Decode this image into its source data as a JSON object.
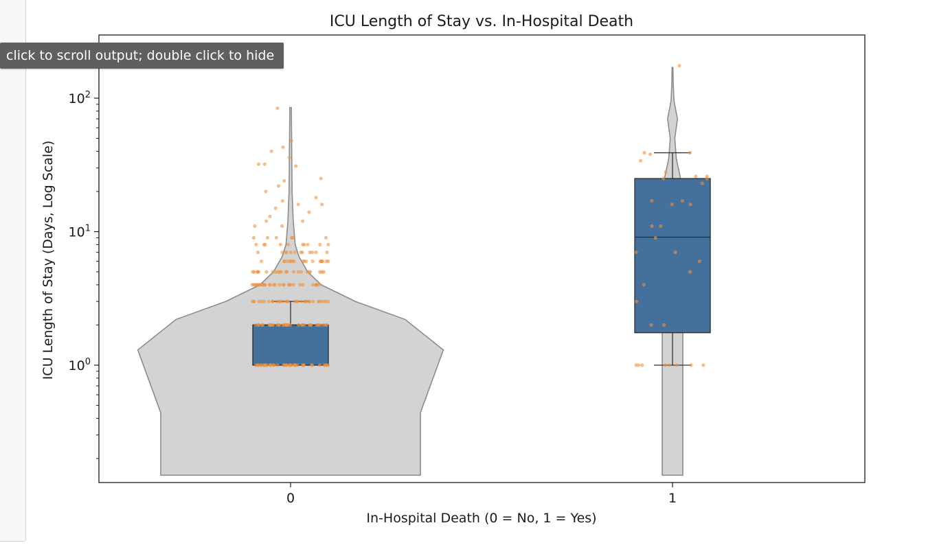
{
  "output_area": {
    "tooltip_text": "click to scroll output; double click to hide"
  },
  "chart_data": {
    "type": "violin+box+strip",
    "title": "ICU Length of Stay vs. In-Hospital Death",
    "xlabel": "In-Hospital Death (0 = No, 1 = Yes)",
    "ylabel": "ICU Length of Stay (Days, Log Scale)",
    "categories": [
      "0",
      "1"
    ],
    "y_scale": "log",
    "ylim": [
      0.15,
      150
    ],
    "y_ticks": [
      {
        "value": 1,
        "base": "10",
        "exp": "0"
      },
      {
        "value": 10,
        "base": "10",
        "exp": "1"
      },
      {
        "value": 100,
        "base": "10",
        "exp": "2"
      }
    ],
    "colors": {
      "violin_fill": "#d3d3d3",
      "violin_edge": "#8c8c8c",
      "box_fill": "#43719c",
      "box_edge": "#2b2b2b",
      "points": "#f0923c"
    },
    "boxes": [
      {
        "category": "0",
        "whislo": 1,
        "q1": 1,
        "median": 2,
        "q3": 2,
        "whishi": 3
      },
      {
        "category": "1",
        "whislo": 1,
        "q1": 1.75,
        "median": 9.1,
        "q3": 25,
        "whishi": 39
      }
    ],
    "violins": [
      {
        "category": "0",
        "profile": [
          [
            0.15,
            0.34
          ],
          [
            0.44,
            0.34
          ],
          [
            1.3,
            0.4
          ],
          [
            2.2,
            0.3
          ],
          [
            3.0,
            0.17
          ],
          [
            4.0,
            0.08
          ],
          [
            5.0,
            0.045
          ],
          [
            6.5,
            0.022
          ],
          [
            8.0,
            0.012
          ],
          [
            12,
            0.007
          ],
          [
            20,
            0.004
          ],
          [
            40,
            0.003
          ],
          [
            85,
            0.002
          ]
        ]
      },
      {
        "category": "1",
        "profile": [
          [
            0.15,
            0.027
          ],
          [
            1.0,
            0.027
          ],
          [
            2.0,
            0.027
          ],
          [
            4.0,
            0.026
          ],
          [
            8.0,
            0.025
          ],
          [
            15,
            0.024
          ],
          [
            26,
            0.02
          ],
          [
            35,
            0.01
          ],
          [
            50,
            0.006
          ],
          [
            70,
            0.013
          ],
          [
            95,
            0.004
          ],
          [
            125,
            0.002
          ],
          [
            170,
            0.001
          ]
        ]
      }
    ],
    "points": [
      {
        "category": "0",
        "x_offset": 0.0,
        "values": [
          1,
          1,
          1,
          1,
          1,
          1,
          1,
          1,
          1,
          1,
          1,
          1,
          1,
          1,
          1,
          1,
          1,
          1,
          1,
          1,
          1,
          1,
          1,
          1,
          1,
          1,
          1,
          1,
          1,
          1,
          1,
          1,
          1,
          1,
          1,
          1,
          1,
          1,
          1,
          1
        ]
      },
      {
        "category": "0",
        "x_offset": 0.0,
        "values": [
          2,
          2,
          2,
          2,
          2,
          2,
          2,
          2,
          2,
          2,
          2,
          2,
          2,
          2,
          2,
          2,
          2,
          2,
          2,
          2,
          2,
          2,
          2,
          2,
          2,
          2,
          2,
          2,
          2,
          2,
          2,
          2,
          2,
          2,
          2,
          2
        ]
      },
      {
        "category": "0",
        "x_offset": 0.0,
        "values": [
          3,
          3,
          3,
          3,
          3,
          3,
          3,
          3,
          3,
          3,
          3,
          3,
          3,
          3,
          3,
          3,
          3,
          3,
          3,
          3,
          3,
          3,
          3,
          3,
          3,
          3,
          3,
          3,
          3,
          3,
          3,
          3
        ]
      },
      {
        "category": "0",
        "x_offset": 0.0,
        "values": [
          4,
          4,
          4,
          4,
          4,
          4,
          4,
          4,
          4,
          4,
          4,
          4,
          4,
          4,
          4,
          4,
          4,
          4,
          4,
          4,
          4,
          4,
          4,
          4,
          4,
          4,
          4,
          4,
          4,
          4
        ]
      },
      {
        "category": "0",
        "x_offset": 0.0,
        "values": [
          5,
          5,
          5,
          5,
          5,
          5,
          5,
          5,
          5,
          5,
          5,
          5,
          5,
          5,
          5,
          5,
          5,
          5,
          5,
          5,
          5,
          5
        ]
      },
      {
        "category": "0",
        "x_offset": 0.0,
        "values": [
          6,
          6,
          6,
          6,
          6,
          6,
          6,
          6,
          6,
          6,
          6,
          6,
          6,
          6,
          6,
          6,
          6,
          6
        ]
      },
      {
        "category": "0",
        "x_offset": 0.0,
        "values": [
          7,
          7,
          7,
          7,
          7,
          7,
          7,
          7,
          7,
          7,
          7,
          7,
          8,
          8,
          8,
          8,
          8,
          8,
          8,
          8,
          8,
          8,
          9,
          9,
          9,
          9,
          9,
          9
        ]
      },
      {
        "category": "0",
        "x_offset": 0.0,
        "values": [
          11,
          11,
          12,
          12,
          13,
          14,
          15,
          16,
          16,
          17,
          18,
          20,
          22,
          24,
          25,
          31,
          32,
          32,
          36,
          40,
          43,
          48,
          84
        ]
      },
      {
        "category": "1",
        "x_offset": 0.0,
        "values": [
          1,
          1,
          1,
          1,
          1,
          1,
          1,
          1,
          2,
          2,
          3,
          4,
          5,
          6,
          7,
          7,
          9,
          11,
          11,
          16,
          16,
          17,
          17,
          23,
          25,
          25,
          26,
          26,
          28,
          34,
          38,
          39,
          39,
          175
        ]
      }
    ]
  }
}
